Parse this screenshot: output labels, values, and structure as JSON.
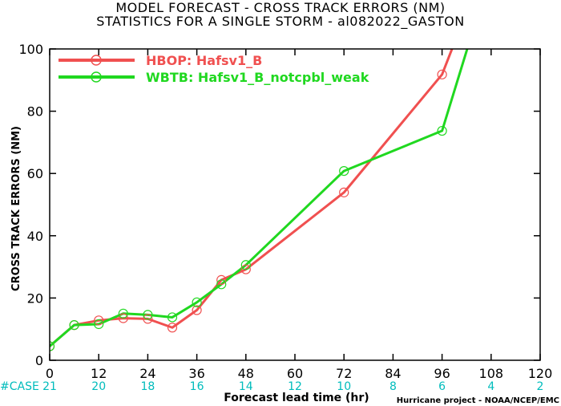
{
  "title_line1": "MODEL FORECAST - CROSS TRACK ERRORS (NM)",
  "title_line2": "STATISTICS FOR A SINGLE STORM - al082022_GASTON",
  "credit": "Hurricane project - NOAA/NCEP/EMC",
  "case_label": "#CASE",
  "chart_data": {
    "type": "line",
    "xlabel": "Forecast lead time (hr)",
    "ylabel": "CROSS TRACK ERRORS (NM)",
    "xlim": [
      0,
      120
    ],
    "ylim": [
      0,
      100
    ],
    "x_ticks": [
      0,
      12,
      24,
      36,
      48,
      60,
      72,
      84,
      96,
      108,
      120
    ],
    "y_ticks": [
      0,
      20,
      40,
      60,
      80,
      100
    ],
    "grid": false,
    "legend_position": "top-left",
    "case_counts": [
      {
        "x": 0,
        "count": "21"
      },
      {
        "x": 12,
        "count": "20"
      },
      {
        "x": 24,
        "count": "18"
      },
      {
        "x": 36,
        "count": "16"
      },
      {
        "x": 48,
        "count": "14"
      },
      {
        "x": 60,
        "count": "12"
      },
      {
        "x": 72,
        "count": "10"
      },
      {
        "x": 84,
        "count": "8"
      },
      {
        "x": 96,
        "count": "6"
      },
      {
        "x": 108,
        "count": "4"
      },
      {
        "x": 120,
        "count": "2"
      }
    ],
    "series": [
      {
        "name": "HBOP: Hafsv1_B",
        "color": "#f05050",
        "x": [
          0,
          6,
          12,
          18,
          24,
          30,
          36,
          42,
          48,
          72,
          96,
          102
        ],
        "y": [
          4.5,
          11.3,
          12.8,
          13.5,
          13.3,
          10.5,
          16.1,
          25.8,
          29.2,
          53.9,
          91.8,
          112
        ]
      },
      {
        "name": "WBTB: Hafsv1_B_notcpbl_weak",
        "color": "#20d820",
        "x": [
          0,
          6,
          12,
          18,
          24,
          30,
          36,
          42,
          48,
          72,
          96,
          108
        ],
        "y": [
          4.5,
          11.3,
          11.6,
          15.0,
          14.6,
          13.8,
          18.6,
          24.4,
          30.6,
          60.8,
          73.7,
          125
        ]
      }
    ]
  }
}
